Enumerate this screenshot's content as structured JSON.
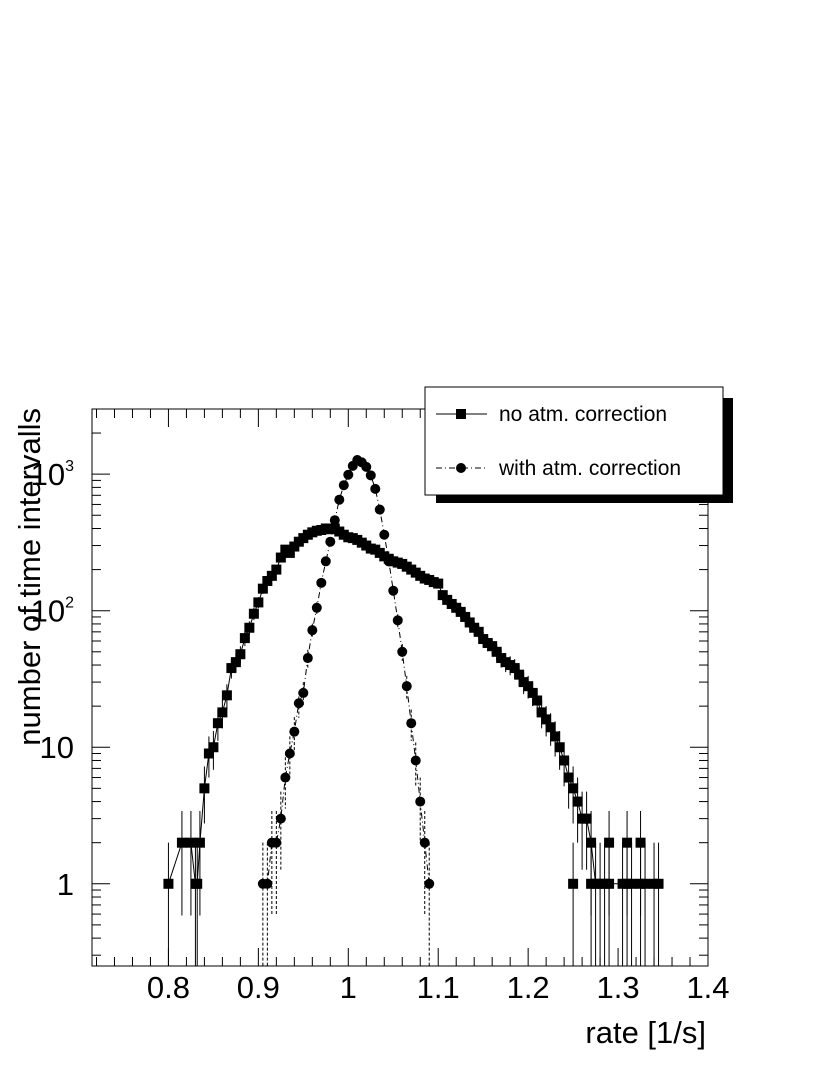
{
  "chart_data": {
    "type": "scatter",
    "xlabel": "rate [1/s]",
    "ylabel": "number of time intervalls",
    "xlim": [
      0.715,
      1.4
    ],
    "ylim": [
      0.25,
      3000
    ],
    "yscale": "log",
    "x_ticks": [
      0.8,
      0.9,
      1.0,
      1.1,
      1.2,
      1.3,
      1.4
    ],
    "x_tick_labels": [
      "0.8",
      "0.9",
      "1",
      "1.1",
      "1.2",
      "1.3",
      "1.4"
    ],
    "y_ticks": [
      1,
      10,
      100,
      1000
    ],
    "y_tick_labels": [
      {
        "base": "1",
        "exp": ""
      },
      {
        "base": "10",
        "exp": ""
      },
      {
        "base": "10",
        "exp": "2"
      },
      {
        "base": "10",
        "exp": "3"
      }
    ],
    "grid": false,
    "legend_position": "top-right",
    "series": [
      {
        "name": "no atm. correction",
        "marker": "square",
        "line": "solid",
        "points": [
          [
            0.8,
            1
          ],
          [
            0.815,
            2
          ],
          [
            0.825,
            2
          ],
          [
            0.83,
            1
          ],
          [
            0.832,
            1
          ],
          [
            0.835,
            2
          ],
          [
            0.84,
            5
          ],
          [
            0.845,
            9
          ],
          [
            0.85,
            10
          ],
          [
            0.855,
            15
          ],
          [
            0.86,
            18
          ],
          [
            0.865,
            24
          ],
          [
            0.87,
            38
          ],
          [
            0.875,
            42
          ],
          [
            0.88,
            48
          ],
          [
            0.885,
            63
          ],
          [
            0.89,
            75
          ],
          [
            0.895,
            95
          ],
          [
            0.9,
            115
          ],
          [
            0.905,
            145
          ],
          [
            0.91,
            165
          ],
          [
            0.915,
            180
          ],
          [
            0.92,
            200
          ],
          [
            0.925,
            245
          ],
          [
            0.93,
            280
          ],
          [
            0.935,
            265
          ],
          [
            0.94,
            295
          ],
          [
            0.945,
            320
          ],
          [
            0.95,
            340
          ],
          [
            0.955,
            360
          ],
          [
            0.96,
            375
          ],
          [
            0.965,
            385
          ],
          [
            0.97,
            390
          ],
          [
            0.975,
            400
          ],
          [
            0.98,
            395
          ],
          [
            0.985,
            400
          ],
          [
            0.99,
            380
          ],
          [
            0.995,
            360
          ],
          [
            1.0,
            345
          ],
          [
            1.005,
            340
          ],
          [
            1.01,
            330
          ],
          [
            1.015,
            315
          ],
          [
            1.02,
            300
          ],
          [
            1.025,
            285
          ],
          [
            1.03,
            280
          ],
          [
            1.035,
            265
          ],
          [
            1.04,
            250
          ],
          [
            1.045,
            240
          ],
          [
            1.05,
            230
          ],
          [
            1.055,
            225
          ],
          [
            1.06,
            220
          ],
          [
            1.065,
            210
          ],
          [
            1.07,
            200
          ],
          [
            1.075,
            190
          ],
          [
            1.08,
            180
          ],
          [
            1.085,
            172
          ],
          [
            1.09,
            168
          ],
          [
            1.095,
            162
          ],
          [
            1.1,
            158
          ],
          [
            1.105,
            130
          ],
          [
            1.11,
            120
          ],
          [
            1.115,
            112
          ],
          [
            1.12,
            105
          ],
          [
            1.125,
            98
          ],
          [
            1.13,
            90
          ],
          [
            1.135,
            82
          ],
          [
            1.14,
            75
          ],
          [
            1.145,
            70
          ],
          [
            1.15,
            62
          ],
          [
            1.155,
            58
          ],
          [
            1.16,
            55
          ],
          [
            1.165,
            50
          ],
          [
            1.17,
            45
          ],
          [
            1.175,
            42
          ],
          [
            1.18,
            40
          ],
          [
            1.185,
            38
          ],
          [
            1.19,
            34
          ],
          [
            1.195,
            30
          ],
          [
            1.2,
            28
          ],
          [
            1.205,
            25
          ],
          [
            1.21,
            22
          ],
          [
            1.215,
            18
          ],
          [
            1.22,
            16
          ],
          [
            1.225,
            14
          ],
          [
            1.23,
            12
          ],
          [
            1.235,
            10
          ],
          [
            1.24,
            8
          ],
          [
            1.245,
            6
          ],
          [
            1.25,
            5
          ],
          [
            1.255,
            4
          ],
          [
            1.26,
            3
          ],
          [
            1.265,
            3
          ],
          [
            1.27,
            2
          ],
          [
            1.25,
            1
          ],
          [
            1.27,
            1
          ],
          [
            1.275,
            1
          ],
          [
            1.28,
            1
          ],
          [
            1.285,
            1
          ],
          [
            1.29,
            1
          ],
          [
            1.305,
            1
          ],
          [
            1.31,
            1
          ],
          [
            1.315,
            1
          ],
          [
            1.325,
            1
          ],
          [
            1.33,
            1
          ],
          [
            1.34,
            1
          ],
          [
            1.345,
            1
          ],
          [
            1.29,
            2
          ],
          [
            1.31,
            2
          ],
          [
            1.325,
            2
          ]
        ]
      },
      {
        "name": "with atm. correction",
        "marker": "circle",
        "line": "dash-dot",
        "points": [
          [
            0.905,
            1
          ],
          [
            0.91,
            1
          ],
          [
            0.915,
            2
          ],
          [
            0.92,
            2
          ],
          [
            0.925,
            3
          ],
          [
            0.93,
            6
          ],
          [
            0.935,
            9
          ],
          [
            0.94,
            13
          ],
          [
            0.945,
            21
          ],
          [
            0.95,
            25
          ],
          [
            0.955,
            45
          ],
          [
            0.96,
            72
          ],
          [
            0.965,
            105
          ],
          [
            0.97,
            160
          ],
          [
            0.975,
            230
          ],
          [
            0.98,
            320
          ],
          [
            0.985,
            460
          ],
          [
            0.99,
            650
          ],
          [
            0.995,
            830
          ],
          [
            1.0,
            990
          ],
          [
            1.005,
            1150
          ],
          [
            1.01,
            1270
          ],
          [
            1.015,
            1220
          ],
          [
            1.02,
            1130
          ],
          [
            1.025,
            980
          ],
          [
            1.03,
            780
          ],
          [
            1.035,
            550
          ],
          [
            1.04,
            360
          ],
          [
            1.045,
            230
          ],
          [
            1.05,
            140
          ],
          [
            1.055,
            85
          ],
          [
            1.06,
            50
          ],
          [
            1.065,
            28
          ],
          [
            1.07,
            15
          ],
          [
            1.075,
            8
          ],
          [
            1.08,
            4
          ],
          [
            1.085,
            2
          ],
          [
            1.09,
            1
          ]
        ]
      }
    ]
  }
}
